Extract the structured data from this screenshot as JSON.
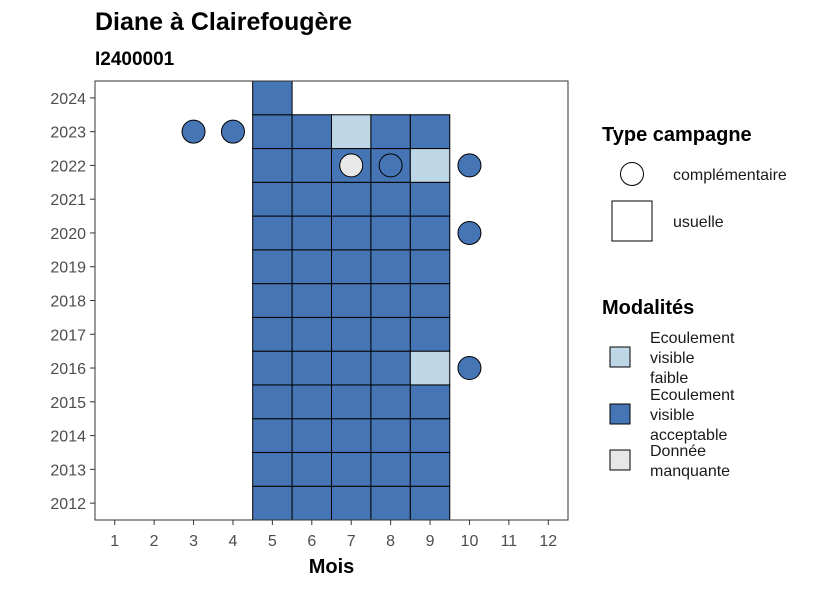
{
  "chart_data": {
    "type": "heatmap",
    "title": "Diane à Clairefougère",
    "subtitle": "I2400001",
    "xlabel": "Mois",
    "ylabel": "",
    "x_ticks": [
      1,
      2,
      3,
      4,
      5,
      6,
      7,
      8,
      9,
      10,
      11,
      12
    ],
    "y_ticks": [
      2012,
      2013,
      2014,
      2015,
      2016,
      2017,
      2018,
      2019,
      2020,
      2021,
      2022,
      2023,
      2024
    ],
    "xlim": [
      0.5,
      12.5
    ],
    "ylim": [
      2011.5,
      2024.5
    ],
    "grid": false,
    "legend_position": "right",
    "legend_type": {
      "title": "Type campagne",
      "items": [
        {
          "key": "complementaire",
          "label": "complémentaire",
          "shape": "circle"
        },
        {
          "key": "usuelle",
          "label": "usuelle",
          "shape": "square"
        }
      ]
    },
    "legend_modalites": {
      "title": "Modalités",
      "items": [
        {
          "key": "faible",
          "lines": [
            "Ecoulement",
            "visible",
            "faible"
          ],
          "color": "#bdd7e7"
        },
        {
          "key": "acceptable",
          "lines": [
            "Ecoulement",
            "visible",
            "acceptable"
          ],
          "color": "#4575b4"
        },
        {
          "key": "manquante",
          "lines": [
            "Donnée",
            "manquante"
          ],
          "color": "#e8e8e8"
        }
      ]
    },
    "usuelle": [
      {
        "month": 5,
        "year": 2012,
        "modalite": "acceptable"
      },
      {
        "month": 6,
        "year": 2012,
        "modalite": "acceptable"
      },
      {
        "month": 7,
        "year": 2012,
        "modalite": "acceptable"
      },
      {
        "month": 8,
        "year": 2012,
        "modalite": "acceptable"
      },
      {
        "month": 9,
        "year": 2012,
        "modalite": "acceptable"
      },
      {
        "month": 5,
        "year": 2013,
        "modalite": "acceptable"
      },
      {
        "month": 6,
        "year": 2013,
        "modalite": "acceptable"
      },
      {
        "month": 7,
        "year": 2013,
        "modalite": "acceptable"
      },
      {
        "month": 8,
        "year": 2013,
        "modalite": "acceptable"
      },
      {
        "month": 9,
        "year": 2013,
        "modalite": "acceptable"
      },
      {
        "month": 5,
        "year": 2014,
        "modalite": "acceptable"
      },
      {
        "month": 6,
        "year": 2014,
        "modalite": "acceptable"
      },
      {
        "month": 7,
        "year": 2014,
        "modalite": "acceptable"
      },
      {
        "month": 8,
        "year": 2014,
        "modalite": "acceptable"
      },
      {
        "month": 9,
        "year": 2014,
        "modalite": "acceptable"
      },
      {
        "month": 5,
        "year": 2015,
        "modalite": "acceptable"
      },
      {
        "month": 6,
        "year": 2015,
        "modalite": "acceptable"
      },
      {
        "month": 7,
        "year": 2015,
        "modalite": "acceptable"
      },
      {
        "month": 8,
        "year": 2015,
        "modalite": "acceptable"
      },
      {
        "month": 9,
        "year": 2015,
        "modalite": "acceptable"
      },
      {
        "month": 5,
        "year": 2016,
        "modalite": "acceptable"
      },
      {
        "month": 6,
        "year": 2016,
        "modalite": "acceptable"
      },
      {
        "month": 7,
        "year": 2016,
        "modalite": "acceptable"
      },
      {
        "month": 8,
        "year": 2016,
        "modalite": "acceptable"
      },
      {
        "month": 9,
        "year": 2016,
        "modalite": "faible"
      },
      {
        "month": 5,
        "year": 2017,
        "modalite": "acceptable"
      },
      {
        "month": 6,
        "year": 2017,
        "modalite": "acceptable"
      },
      {
        "month": 7,
        "year": 2017,
        "modalite": "acceptable"
      },
      {
        "month": 8,
        "year": 2017,
        "modalite": "acceptable"
      },
      {
        "month": 9,
        "year": 2017,
        "modalite": "acceptable"
      },
      {
        "month": 5,
        "year": 2018,
        "modalite": "acceptable"
      },
      {
        "month": 6,
        "year": 2018,
        "modalite": "acceptable"
      },
      {
        "month": 7,
        "year": 2018,
        "modalite": "acceptable"
      },
      {
        "month": 8,
        "year": 2018,
        "modalite": "acceptable"
      },
      {
        "month": 9,
        "year": 2018,
        "modalite": "acceptable"
      },
      {
        "month": 5,
        "year": 2019,
        "modalite": "acceptable"
      },
      {
        "month": 6,
        "year": 2019,
        "modalite": "acceptable"
      },
      {
        "month": 7,
        "year": 2019,
        "modalite": "acceptable"
      },
      {
        "month": 8,
        "year": 2019,
        "modalite": "acceptable"
      },
      {
        "month": 9,
        "year": 2019,
        "modalite": "acceptable"
      },
      {
        "month": 5,
        "year": 2020,
        "modalite": "acceptable"
      },
      {
        "month": 6,
        "year": 2020,
        "modalite": "acceptable"
      },
      {
        "month": 7,
        "year": 2020,
        "modalite": "acceptable"
      },
      {
        "month": 8,
        "year": 2020,
        "modalite": "acceptable"
      },
      {
        "month": 9,
        "year": 2020,
        "modalite": "acceptable"
      },
      {
        "month": 5,
        "year": 2021,
        "modalite": "acceptable"
      },
      {
        "month": 6,
        "year": 2021,
        "modalite": "acceptable"
      },
      {
        "month": 7,
        "year": 2021,
        "modalite": "acceptable"
      },
      {
        "month": 8,
        "year": 2021,
        "modalite": "acceptable"
      },
      {
        "month": 9,
        "year": 2021,
        "modalite": "acceptable"
      },
      {
        "month": 5,
        "year": 2022,
        "modalite": "acceptable"
      },
      {
        "month": 6,
        "year": 2022,
        "modalite": "acceptable"
      },
      {
        "month": 7,
        "year": 2022,
        "modalite": "acceptable"
      },
      {
        "month": 8,
        "year": 2022,
        "modalite": "acceptable"
      },
      {
        "month": 9,
        "year": 2022,
        "modalite": "faible"
      },
      {
        "month": 5,
        "year": 2023,
        "modalite": "acceptable"
      },
      {
        "month": 6,
        "year": 2023,
        "modalite": "acceptable"
      },
      {
        "month": 7,
        "year": 2023,
        "modalite": "faible"
      },
      {
        "month": 8,
        "year": 2023,
        "modalite": "acceptable"
      },
      {
        "month": 9,
        "year": 2023,
        "modalite": "acceptable"
      },
      {
        "month": 5,
        "year": 2024,
        "modalite": "acceptable"
      }
    ],
    "complementaire": [
      {
        "month": 3,
        "year": 2023,
        "modalite": "acceptable"
      },
      {
        "month": 4,
        "year": 2023,
        "modalite": "acceptable"
      },
      {
        "month": 7,
        "year": 2022,
        "modalite": "manquante"
      },
      {
        "month": 8,
        "year": 2022,
        "modalite": "acceptable"
      },
      {
        "month": 10,
        "year": 2022,
        "modalite": "acceptable"
      },
      {
        "month": 10,
        "year": 2020,
        "modalite": "acceptable"
      },
      {
        "month": 10,
        "year": 2016,
        "modalite": "acceptable"
      }
    ],
    "colors": {
      "faible": "#bdd7e7",
      "acceptable": "#4575b4",
      "manquante": "#e8e8e8",
      "outline": "#000000",
      "panel_border": "#333333",
      "tick_text": "#4d4d4d"
    }
  }
}
